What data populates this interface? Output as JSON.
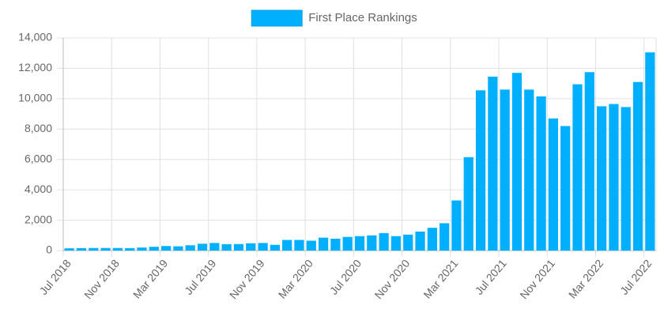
{
  "chart_data": {
    "type": "bar",
    "categories": [
      "Jul 2018",
      null,
      null,
      null,
      "Nov 2018",
      null,
      null,
      null,
      "Mar 2019",
      null,
      null,
      null,
      "Jul 2019",
      null,
      null,
      null,
      "Nov 2019",
      null,
      null,
      null,
      "Mar 2020",
      null,
      null,
      null,
      "Jul 2020",
      null,
      null,
      null,
      "Nov 2020",
      null,
      null,
      null,
      "Mar 2021",
      null,
      null,
      null,
      "Jul 2021",
      null,
      null,
      null,
      "Nov 2021",
      null,
      null,
      null,
      "Mar 2022",
      null,
      null,
      null,
      "Jul 2022"
    ],
    "series": [
      {
        "name": "First Place Rankings",
        "color": "#00b0ff",
        "values": [
          150,
          160,
          170,
          170,
          170,
          160,
          200,
          250,
          300,
          280,
          350,
          450,
          500,
          420,
          430,
          480,
          500,
          380,
          700,
          700,
          650,
          850,
          780,
          900,
          950,
          1000,
          1150,
          950,
          1050,
          1250,
          1500,
          1800,
          3300,
          6150,
          10550,
          11450,
          10600,
          11700,
          10600,
          10150,
          8700,
          8200,
          10950,
          11750,
          9500,
          9650,
          9450,
          11100,
          13050
        ]
      }
    ],
    "ylim": [
      0,
      14000
    ],
    "yticks": [
      0,
      {
        "value": 2000,
        "label": "2,000"
      },
      {
        "value": 4000,
        "label": "4,000"
      },
      {
        "value": 6000,
        "label": "6,000"
      },
      {
        "value": 8000,
        "label": "8,000"
      },
      {
        "value": 10000,
        "label": "10,000"
      },
      {
        "value": 12000,
        "label": "12,000"
      },
      {
        "value": 14000,
        "label": "14,000"
      }
    ],
    "grid": true,
    "legend": "top"
  }
}
